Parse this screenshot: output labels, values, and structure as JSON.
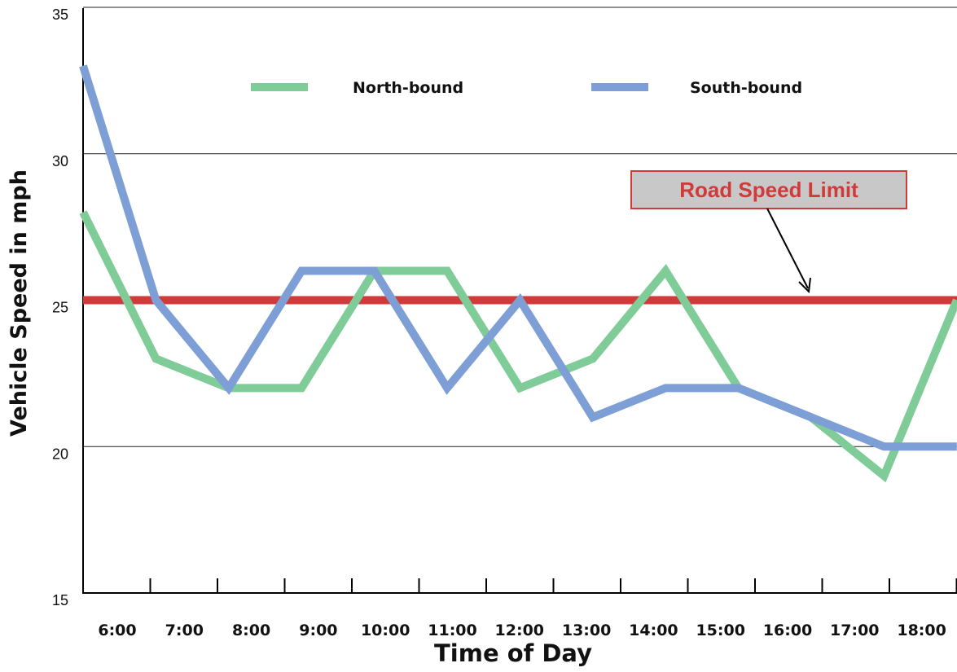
{
  "chart_data": {
    "type": "line",
    "title": "",
    "xlabel": "Time of Day",
    "ylabel": "Vehicle Speed  in mph",
    "categories": [
      "6:00",
      "7:00",
      "8:00",
      "9:00",
      "10:00",
      "11:00",
      "12:00",
      "13:00",
      "14:00",
      "15:00",
      "16:00",
      "17:00",
      "18:00"
    ],
    "ylim": [
      15,
      35
    ],
    "yticks": [
      "15",
      "20",
      "25",
      "30",
      "35"
    ],
    "gridlines_y": [
      20,
      30
    ],
    "series": [
      {
        "name": "North-bound",
        "color": "#7fcc98",
        "values": [
          28,
          23,
          22,
          22,
          26,
          26,
          22,
          23,
          26,
          22,
          21,
          19,
          25
        ]
      },
      {
        "name": "South-bound",
        "color": "#7d9fd6",
        "values": [
          33,
          25,
          22,
          26,
          26,
          22,
          25,
          21,
          22,
          22,
          21,
          20,
          20
        ]
      }
    ],
    "reference_line": {
      "value": 25,
      "color": "#d13a3a"
    },
    "annotation": {
      "text": "Road Speed Limit",
      "text_color": "#d13a3a",
      "box_fill": "#c8c8c8",
      "box_border": "#d13a3a"
    },
    "legend_position": "top"
  }
}
